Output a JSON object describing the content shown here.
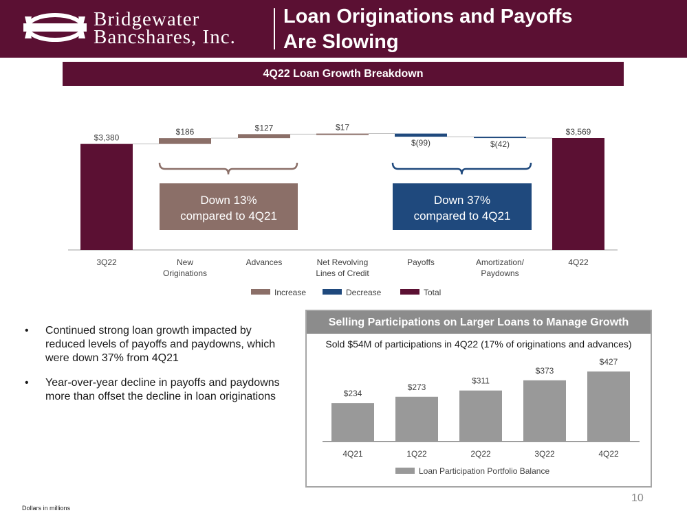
{
  "header": {
    "logo_line1": "Bridgewater",
    "logo_line2": "Bancshares, Inc.",
    "title_line1": "Loan Originations and Payoffs",
    "title_line2": "Are Slowing"
  },
  "section_title": "4Q22 Loan Growth Breakdown",
  "chart_data": [
    {
      "type": "waterfall",
      "title": "4Q22 Loan Growth Breakdown",
      "units": "Dollars in millions",
      "categories": [
        "3Q22",
        "New Originations",
        "Advances",
        "Net Revolving Lines of Credit",
        "Payoffs",
        "Amortization/ Paydowns",
        "4Q22"
      ],
      "category_lines": [
        [
          "3Q22"
        ],
        [
          "New",
          "Originations"
        ],
        [
          "Advances"
        ],
        [
          "Net Revolving",
          "Lines of Credit"
        ],
        [
          "Payoffs"
        ],
        [
          "Amortization/",
          "Paydowns"
        ],
        [
          "4Q22"
        ]
      ],
      "values": [
        3380,
        186,
        127,
        17,
        -99,
        -42,
        3569
      ],
      "kinds": [
        "total",
        "increase",
        "increase",
        "increase",
        "decrease",
        "decrease",
        "total"
      ],
      "labels": [
        "$3,380",
        "$186",
        "$127",
        "$17",
        "$(99)",
        "$(42)",
        "$3,569"
      ],
      "legend": [
        {
          "name": "Increase",
          "color": "#8b6f68"
        },
        {
          "name": "Decrease",
          "color": "#1f497d"
        },
        {
          "name": "Total",
          "color": "#5b1033"
        }
      ],
      "callouts": [
        {
          "line1": "Down 13%",
          "line2": "compared to 4Q21",
          "color": "#8b6f68"
        },
        {
          "line1": "Down 37%",
          "line2": "compared to 4Q21",
          "color": "#1f497d"
        }
      ]
    },
    {
      "type": "bar",
      "title": "Selling Participations on Larger Loans to Manage Growth",
      "subtitle": "Sold $54M of participations in 4Q22 (17% of originations and advances)",
      "categories": [
        "4Q21",
        "1Q22",
        "2Q22",
        "3Q22",
        "4Q22"
      ],
      "values": [
        234,
        273,
        311,
        373,
        427
      ],
      "labels": [
        "$234",
        "$273",
        "$311",
        "$373",
        "$427"
      ],
      "series_name": "Loan Participation Portfolio Balance",
      "color": "#999999"
    }
  ],
  "bullets": [
    "Continued strong loan growth impacted by reduced levels of payoffs and paydowns, which were down 37% from 4Q21",
    "Year-over-year decline in payoffs and paydowns more than offset the decline in loan originations"
  ],
  "bullet_symbol": "•",
  "footnote": "Dollars in millions",
  "page_number": "10"
}
